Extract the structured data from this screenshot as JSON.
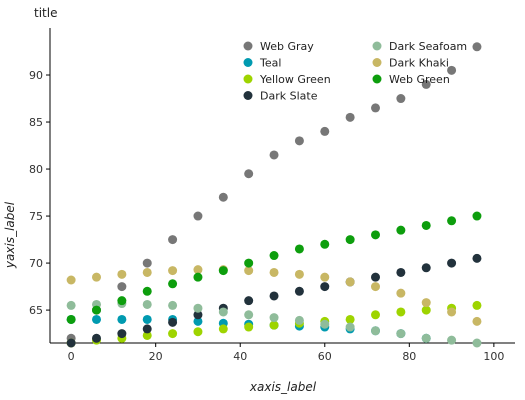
{
  "chart_data": {
    "type": "scatter",
    "title": "title",
    "xlabel": "xaxis_label",
    "ylabel": "yaxis_label",
    "xlim": [
      -5,
      105
    ],
    "ylim": [
      61.5,
      95
    ],
    "xticks": [
      0,
      20,
      40,
      60,
      80,
      100
    ],
    "yticks": [
      65,
      70,
      75,
      80,
      85,
      90
    ],
    "legend_position": "top-center",
    "x": [
      0,
      6,
      12,
      18,
      24,
      30,
      36,
      42,
      48,
      54,
      60,
      66,
      72,
      78,
      84,
      90,
      96
    ],
    "series": [
      {
        "name": "Web Gray",
        "color": "#777777",
        "values": [
          62.0,
          65.0,
          67.5,
          70.0,
          72.5,
          75.0,
          77.0,
          79.5,
          81.5,
          83.0,
          84.0,
          85.5,
          86.5,
          87.5,
          89.0,
          90.5,
          93.0
        ]
      },
      {
        "name": "Teal",
        "color": "#009ab0",
        "values": [
          64.0,
          64.0,
          64.0,
          64.0,
          64.0,
          63.8,
          63.6,
          63.5,
          63.4,
          63.3,
          63.2,
          63.0,
          62.8,
          62.5,
          62.0,
          null,
          null
        ]
      },
      {
        "name": "Yellow Green",
        "color": "#9ed400",
        "values": [
          61.5,
          61.8,
          62.0,
          62.3,
          62.5,
          62.7,
          63.0,
          63.2,
          63.4,
          63.6,
          63.8,
          64.0,
          64.5,
          64.8,
          65.0,
          65.2,
          65.5
        ]
      },
      {
        "name": "Dark Slate",
        "color": "#22323c",
        "values": [
          61.5,
          62.0,
          62.5,
          63.0,
          63.7,
          64.5,
          65.2,
          66.0,
          66.5,
          67.0,
          67.5,
          68.0,
          68.5,
          69.0,
          69.5,
          70.0,
          70.5
        ]
      },
      {
        "name": "Dark Seafoam",
        "color": "#8fbc9a",
        "values": [
          65.5,
          65.6,
          65.7,
          65.6,
          65.5,
          65.2,
          64.8,
          64.5,
          64.2,
          63.9,
          63.5,
          63.2,
          62.8,
          62.5,
          62.0,
          61.8,
          61.5
        ]
      },
      {
        "name": "Dark Khaki",
        "color": "#c8b764",
        "values": [
          68.2,
          68.5,
          68.8,
          69.0,
          69.2,
          69.3,
          69.3,
          69.2,
          69.0,
          68.8,
          68.5,
          68.0,
          67.5,
          66.8,
          65.8,
          64.8,
          63.8
        ]
      },
      {
        "name": "Web Green",
        "color": "#0d9e0d",
        "values": [
          64.0,
          65.0,
          66.0,
          67.0,
          67.8,
          68.5,
          69.2,
          70.0,
          70.8,
          71.5,
          72.0,
          72.5,
          73.0,
          73.5,
          74.0,
          74.5,
          75.0
        ]
      }
    ]
  }
}
